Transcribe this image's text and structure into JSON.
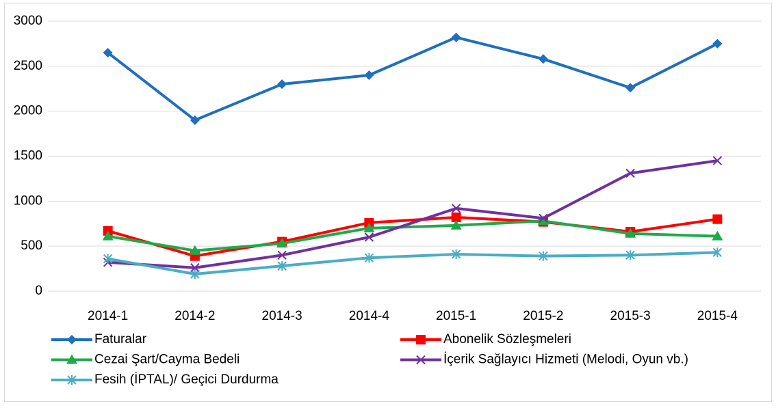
{
  "chart_data": {
    "type": "line",
    "categories": [
      "2014-1",
      "2014-2",
      "2014-3",
      "2014-4",
      "2015-1",
      "2015-2",
      "2015-3",
      "2015-4"
    ],
    "series": [
      {
        "name": "Faturalar",
        "color": "#1f6fc0",
        "marker": "diamond",
        "values": [
          2650,
          1900,
          2300,
          2400,
          2820,
          2580,
          2260,
          2750
        ]
      },
      {
        "name": "Abonelik Sözleşmeleri",
        "color": "#ff0000",
        "marker": "square",
        "values": [
          670,
          390,
          550,
          760,
          820,
          770,
          660,
          800
        ]
      },
      {
        "name": "Cezai Şart/Cayma Bedeli",
        "color": "#1faa4a",
        "marker": "triangle",
        "values": [
          610,
          450,
          530,
          700,
          730,
          780,
          640,
          610
        ]
      },
      {
        "name": "İçerik Sağlayıcı Hizmeti (Melodi, Oyun vb.)",
        "color": "#7030a0",
        "marker": "x",
        "values": [
          320,
          260,
          400,
          600,
          920,
          810,
          1310,
          1450
        ]
      },
      {
        "name": "Fesih (İPTAL)/ Geçici Durdurma",
        "color": "#4bacc6",
        "marker": "star",
        "values": [
          360,
          190,
          280,
          370,
          410,
          390,
          400,
          430
        ]
      }
    ],
    "ylim": [
      0,
      3000
    ],
    "yticks": [
      0,
      500,
      1000,
      1500,
      2000,
      2500,
      3000
    ],
    "grid": true,
    "legend": "bottom"
  }
}
